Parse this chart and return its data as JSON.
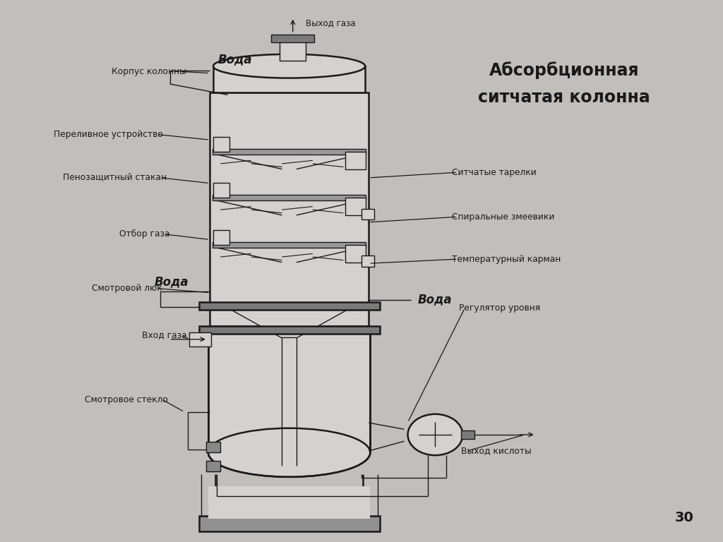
{
  "title_line1": "Абсорбционная",
  "title_line2": "ситчатая колонна",
  "bg_color": "#c0bfbc",
  "line_color": "#1a1a1a",
  "fill_color": "#d4d2cf",
  "dark_fill": "#7a7a7a",
  "page_number": "30",
  "label_voda_top": "Вода",
  "label_voda_mid": "Вода",
  "label_voda_right": "Вода",
  "label_vyhod_gaz": "Выход газа",
  "label_korpus": "Корпус колонны",
  "label_pereliv": "Переливное устройство",
  "label_peno": "Пенозащитный стакан",
  "label_otbor": "Отбор газа",
  "label_smotrluk": "Смотровой люк",
  "label_vhod_gaz": "Вход газа",
  "label_smotr_steklo": "Смотровое стекло",
  "label_sitchatye": "Ситчатые тарелки",
  "label_spiral": "Спиральные змеевики",
  "label_temp": "Температурный карман",
  "label_regul": "Регулятор уровня",
  "label_vyhod_kislota": "Выход кислоты"
}
